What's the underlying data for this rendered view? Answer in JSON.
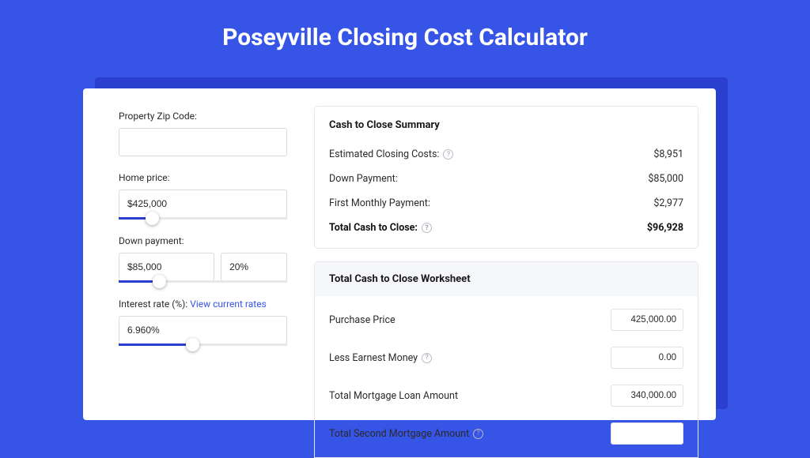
{
  "colors": {
    "page_bg": "#3654e6",
    "shadow_bg": "#2a3fcf",
    "card_bg": "#ffffff",
    "border": "#e6e8ec",
    "text_primary": "#2a2a2a",
    "link": "#3654e6",
    "slider_fill": "#2a3fcf"
  },
  "page": {
    "title": "Poseyville Closing Cost Calculator"
  },
  "form": {
    "zip": {
      "label": "Property Zip Code:",
      "value": ""
    },
    "home_price": {
      "label": "Home price:",
      "value": "$425,000",
      "slider_pct": 16
    },
    "down_payment": {
      "label": "Down payment:",
      "value": "$85,000",
      "pct_value": "20%",
      "slider_pct": 20
    },
    "interest_rate": {
      "label": "Interest rate (%): ",
      "link": "View current rates",
      "value": "6.960%",
      "slider_pct": 40
    }
  },
  "summary": {
    "title": "Cash to Close Summary",
    "rows": [
      {
        "label": "Estimated Closing Costs:",
        "help": true,
        "value": "$8,951",
        "bold": false
      },
      {
        "label": "Down Payment:",
        "help": false,
        "value": "$85,000",
        "bold": false
      },
      {
        "label": "First Monthly Payment:",
        "help": false,
        "value": "$2,977",
        "bold": false
      },
      {
        "label": "Total Cash to Close:",
        "help": true,
        "value": "$96,928",
        "bold": true
      }
    ]
  },
  "worksheet": {
    "title": "Total Cash to Close Worksheet",
    "rows": [
      {
        "label": "Purchase Price",
        "help": false,
        "value": "425,000.00"
      },
      {
        "label": "Less Earnest Money",
        "help": true,
        "value": "0.00"
      },
      {
        "label": "Total Mortgage Loan Amount",
        "help": false,
        "value": "340,000.00"
      },
      {
        "label": "Total Second Mortgage Amount",
        "help": true,
        "value": ""
      }
    ]
  }
}
